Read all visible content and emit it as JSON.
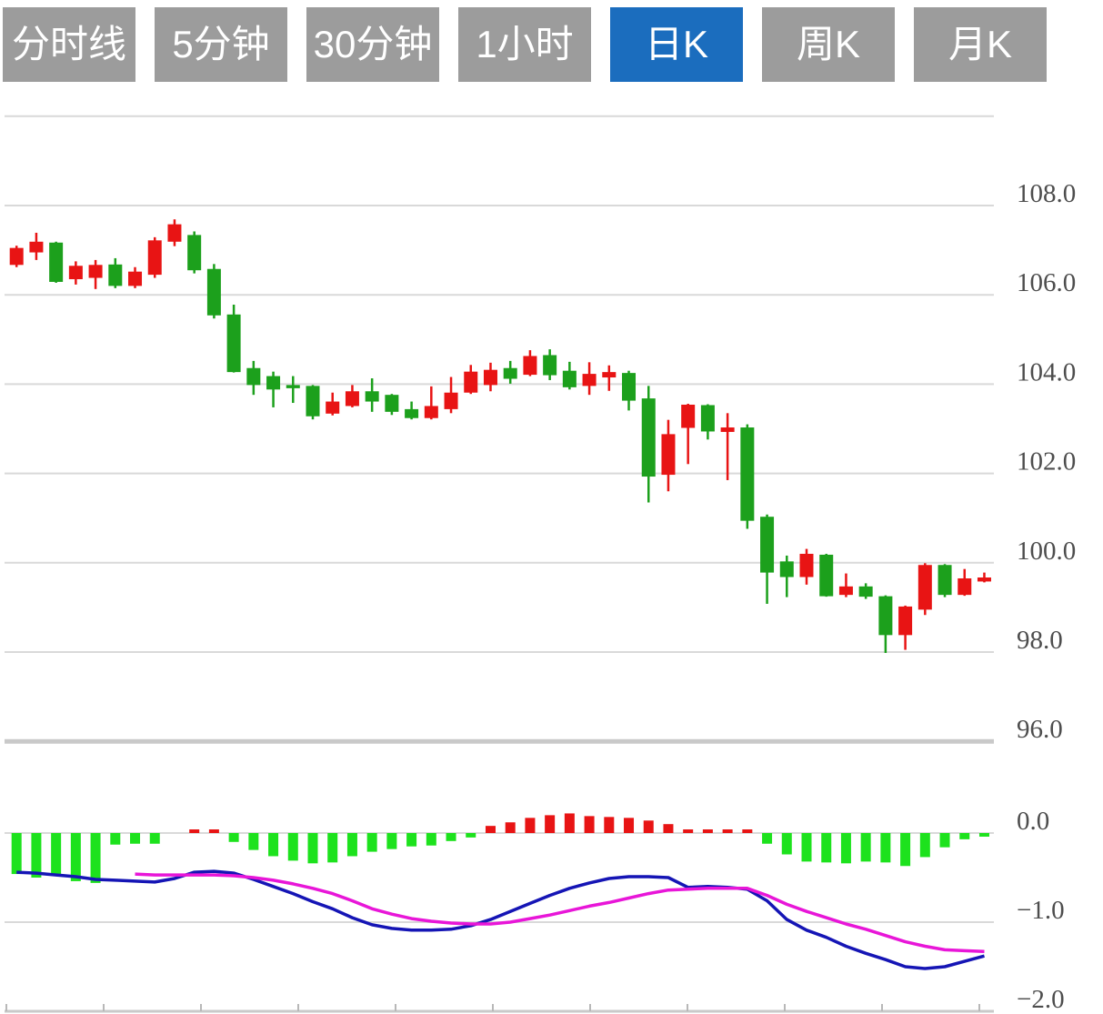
{
  "tabs": [
    {
      "label": "分时线",
      "active": false
    },
    {
      "label": "5分钟",
      "active": false
    },
    {
      "label": "30分钟",
      "active": false
    },
    {
      "label": "1小时",
      "active": false
    },
    {
      "label": "日K",
      "active": true
    },
    {
      "label": "周K",
      "active": false
    },
    {
      "label": "月K",
      "active": false
    }
  ],
  "active_tab": "日K",
  "colors": {
    "tab_bg": "#9c9c9c",
    "tab_active_bg": "#1b6dbe",
    "tab_text": "#ffffff",
    "candle_up": "#e81414",
    "candle_down": "#1ca01c",
    "hist_up": "#e81414",
    "hist_down": "#1de21d",
    "dif_line": "#1515b5",
    "dea_line": "#e816d8",
    "grid": "#d9d9d9",
    "grid_heavy": "#c9c9c9",
    "axis_text": "#4d4d4d"
  },
  "chart_data": {
    "type": "candlestick+macd",
    "title": "",
    "legend_position": "none",
    "grid": true,
    "price_axis": {
      "side": "right",
      "ylim": [
        95.0,
        110.0
      ],
      "gridline_values": [
        110,
        108,
        106,
        104,
        102,
        100,
        98,
        96
      ],
      "tick_values": [
        108,
        106,
        104,
        102,
        100,
        98,
        96
      ],
      "tick_labels": [
        "108.0",
        "106.0",
        "104.0",
        "102.0",
        "100.0",
        "98.0",
        "96.0"
      ]
    },
    "macd_axis": {
      "side": "right",
      "ylim": [
        -2.0,
        0.3
      ],
      "gridline_values": [
        0,
        -1,
        -2
      ],
      "tick_values": [
        0,
        -1,
        -2
      ],
      "tick_labels": [
        "0.0",
        "−1.0",
        "−2.0"
      ]
    },
    "candles_ohlc": [
      [
        106.67,
        107.1,
        106.62,
        107.05
      ],
      [
        106.95,
        107.39,
        106.78,
        107.19
      ],
      [
        107.17,
        107.19,
        106.27,
        106.29
      ],
      [
        106.35,
        106.75,
        106.23,
        106.65
      ],
      [
        106.38,
        106.78,
        106.13,
        106.67
      ],
      [
        106.68,
        106.82,
        106.15,
        106.2
      ],
      [
        106.2,
        106.62,
        106.15,
        106.52
      ],
      [
        106.45,
        107.29,
        106.38,
        107.22
      ],
      [
        107.19,
        107.69,
        107.09,
        107.58
      ],
      [
        107.34,
        107.42,
        106.48,
        106.55
      ],
      [
        106.58,
        106.69,
        105.47,
        105.54
      ],
      [
        105.56,
        105.78,
        104.26,
        104.27
      ],
      [
        104.36,
        104.52,
        103.76,
        103.98
      ],
      [
        104.18,
        104.28,
        103.48,
        103.88
      ],
      [
        103.98,
        104.18,
        103.58,
        103.91
      ],
      [
        103.96,
        103.98,
        103.21,
        103.28
      ],
      [
        103.34,
        103.81,
        103.3,
        103.61
      ],
      [
        103.51,
        103.98,
        103.48,
        103.84
      ],
      [
        103.84,
        104.13,
        103.38,
        103.61
      ],
      [
        103.76,
        103.78,
        103.31,
        103.38
      ],
      [
        103.44,
        103.61,
        103.21,
        103.24
      ],
      [
        103.24,
        103.95,
        103.21,
        103.51
      ],
      [
        103.44,
        104.16,
        103.35,
        103.81
      ],
      [
        103.81,
        104.43,
        103.78,
        104.28
      ],
      [
        103.98,
        104.48,
        103.84,
        104.32
      ],
      [
        104.36,
        104.52,
        104.01,
        104.12
      ],
      [
        104.21,
        104.76,
        104.18,
        104.63
      ],
      [
        104.65,
        104.78,
        104.09,
        104.2
      ],
      [
        104.3,
        104.5,
        103.88,
        103.93
      ],
      [
        103.96,
        104.49,
        103.76,
        104.23
      ],
      [
        104.15,
        104.42,
        103.85,
        104.27
      ],
      [
        104.25,
        104.3,
        103.41,
        103.63
      ],
      [
        103.68,
        103.96,
        101.35,
        101.93
      ],
      [
        101.97,
        103.2,
        101.6,
        102.88
      ],
      [
        103.02,
        103.56,
        102.21,
        103.54
      ],
      [
        103.53,
        103.55,
        102.76,
        102.94
      ],
      [
        102.93,
        103.35,
        101.85,
        103.03
      ],
      [
        103.03,
        103.1,
        100.76,
        100.94
      ],
      [
        101.03,
        101.08,
        99.08,
        99.78
      ],
      [
        100.03,
        100.16,
        99.23,
        99.68
      ],
      [
        99.68,
        100.31,
        99.51,
        100.2
      ],
      [
        100.18,
        100.2,
        99.24,
        99.25
      ],
      [
        99.28,
        99.76,
        99.23,
        99.47
      ],
      [
        99.47,
        99.54,
        99.19,
        99.24
      ],
      [
        99.25,
        99.27,
        97.98,
        98.38
      ],
      [
        98.38,
        99.04,
        98.05,
        99.02
      ],
      [
        98.95,
        99.99,
        98.83,
        99.95
      ],
      [
        99.95,
        99.97,
        99.23,
        99.28
      ],
      [
        99.28,
        99.86,
        99.26,
        99.65
      ],
      [
        99.58,
        99.78,
        99.56,
        99.67
      ]
    ],
    "macd": {
      "histogram": [
        -0.46,
        -0.5,
        -0.48,
        -0.54,
        -0.56,
        -0.13,
        -0.12,
        -0.12,
        0.0,
        0.04,
        0.04,
        -0.1,
        -0.19,
        -0.26,
        -0.31,
        -0.34,
        -0.33,
        -0.26,
        -0.21,
        -0.18,
        -0.15,
        -0.14,
        -0.09,
        -0.05,
        0.08,
        0.12,
        0.17,
        0.2,
        0.22,
        0.19,
        0.18,
        0.17,
        0.14,
        0.1,
        0.04,
        0.02,
        0.02,
        0.02,
        -0.12,
        -0.24,
        -0.32,
        -0.33,
        -0.34,
        -0.32,
        -0.33,
        -0.37,
        -0.27,
        -0.16,
        -0.07,
        -0.02
      ],
      "dif": [
        -0.44,
        -0.45,
        -0.47,
        -0.49,
        -0.52,
        -0.53,
        -0.54,
        -0.55,
        -0.51,
        -0.44,
        -0.43,
        -0.45,
        -0.52,
        -0.6,
        -0.68,
        -0.77,
        -0.85,
        -0.95,
        -1.03,
        -1.07,
        -1.09,
        -1.09,
        -1.08,
        -1.04,
        -0.97,
        -0.88,
        -0.79,
        -0.7,
        -0.62,
        -0.56,
        -0.51,
        -0.49,
        -0.49,
        -0.5,
        -0.61,
        -0.6,
        -0.61,
        -0.63,
        -0.76,
        -0.97,
        -1.09,
        -1.17,
        -1.27,
        -1.35,
        -1.42,
        -1.5,
        -1.52,
        -1.5,
        -1.44,
        -1.38
      ],
      "dea_start_index": 6,
      "dea": [
        -0.46,
        -0.47,
        -0.47,
        -0.47,
        -0.47,
        -0.48,
        -0.5,
        -0.53,
        -0.57,
        -0.62,
        -0.68,
        -0.76,
        -0.85,
        -0.91,
        -0.96,
        -0.99,
        -1.01,
        -1.02,
        -1.02,
        -1.0,
        -0.96,
        -0.92,
        -0.87,
        -0.82,
        -0.78,
        -0.73,
        -0.68,
        -0.64,
        -0.63,
        -0.62,
        -0.62,
        -0.62,
        -0.7,
        -0.8,
        -0.88,
        -0.95,
        -1.02,
        -1.08,
        -1.15,
        -1.22,
        -1.27,
        -1.31,
        -1.32,
        -1.33
      ]
    }
  }
}
